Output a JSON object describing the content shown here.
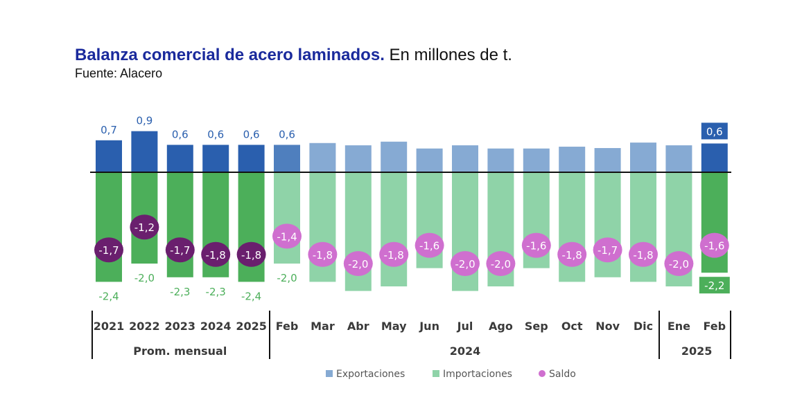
{
  "header": {
    "title_bold": "Balanza comercial de acero laminados.",
    "title_rest": " En millones de t.",
    "source": "Fuente: Alacero"
  },
  "colors": {
    "exports_avg": "#2a5fae",
    "exports_month": "#86aad3",
    "exports_highlight": "#2a5fae",
    "imports_avg": "#4caf5a",
    "imports_month": "#8fd3a8",
    "imports_highlight": "#4caf5a",
    "saldo_avg": "#6a1f6e",
    "saldo_month": "#cf6fcf",
    "exports_label": "#2a5fae",
    "imports_label": "#4caf5a"
  },
  "chart_data": {
    "type": "bar",
    "title": "Balanza comercial de acero laminados. En millones de t.",
    "subtitle": "Fuente: Alacero",
    "xlabel": "",
    "ylabel": "",
    "ylim": [
      -2.6,
      1.0
    ],
    "grid": false,
    "legend_position": "bottom",
    "categories": [
      "2021",
      "2022",
      "2023",
      "2024",
      "2025",
      "Feb",
      "Mar",
      "Abr",
      "May",
      "Jun",
      "Jul",
      "Ago",
      "Sep",
      "Oct",
      "Nov",
      "Dic",
      "Ene",
      "Feb"
    ],
    "category_kind": [
      "avg",
      "avg",
      "avg",
      "avg",
      "avg",
      "month",
      "month",
      "month",
      "month",
      "month",
      "month",
      "month",
      "month",
      "month",
      "month",
      "month",
      "month",
      "highlight"
    ],
    "groups": [
      {
        "label": "Prom. mensual",
        "from": 0,
        "to": 4
      },
      {
        "label": "2024",
        "from": 5,
        "to": 15
      },
      {
        "label": "2025",
        "from": 16,
        "to": 17
      }
    ],
    "series": [
      {
        "name": "Exportaciones",
        "type": "bar",
        "values": [
          0.7,
          0.9,
          0.6,
          0.6,
          0.6,
          0.6,
          0.64,
          0.59,
          0.67,
          0.52,
          0.59,
          0.52,
          0.52,
          0.56,
          0.53,
          0.65,
          0.59,
          0.63
        ],
        "labels": [
          "0,7",
          "0,9",
          "0,6",
          "0,6",
          "0,6",
          "0,6",
          "",
          "",
          "",
          "",
          "",
          "",
          "",
          "",
          "",
          "",
          "",
          "0,6"
        ]
      },
      {
        "name": "Importaciones",
        "type": "bar",
        "values": [
          -2.4,
          -2.0,
          -2.3,
          -2.3,
          -2.4,
          -2.0,
          -2.4,
          -2.6,
          -2.5,
          -2.1,
          -2.6,
          -2.5,
          -2.1,
          -2.4,
          -2.3,
          -2.4,
          -2.5,
          -2.2
        ],
        "labels": [
          "-2,4",
          "-2,0",
          "-2,3",
          "-2,3",
          "-2,4",
          "-2,0",
          "",
          "",
          "",
          "",
          "",
          "",
          "",
          "",
          "",
          "",
          "",
          "-2,2"
        ]
      },
      {
        "name": "Saldo",
        "type": "scatter",
        "values": [
          -1.7,
          -1.2,
          -1.7,
          -1.8,
          -1.8,
          -1.4,
          -1.8,
          -2.0,
          -1.8,
          -1.6,
          -2.0,
          -2.0,
          -1.6,
          -1.8,
          -1.7,
          -1.8,
          -2.0,
          -1.6
        ],
        "labels": [
          "-1,7",
          "-1,2",
          "-1,7",
          "-1,8",
          "-1,8",
          "-1,4",
          "-1,8",
          "-2,0",
          "-1,8",
          "-1,6",
          "-2,0",
          "-2,0",
          "-1,6",
          "-1,8",
          "-1,7",
          "-1,8",
          "-2,0",
          "-1,6"
        ]
      }
    ],
    "legend": [
      "Exportaciones",
      "Importaciones",
      "Saldo"
    ]
  }
}
